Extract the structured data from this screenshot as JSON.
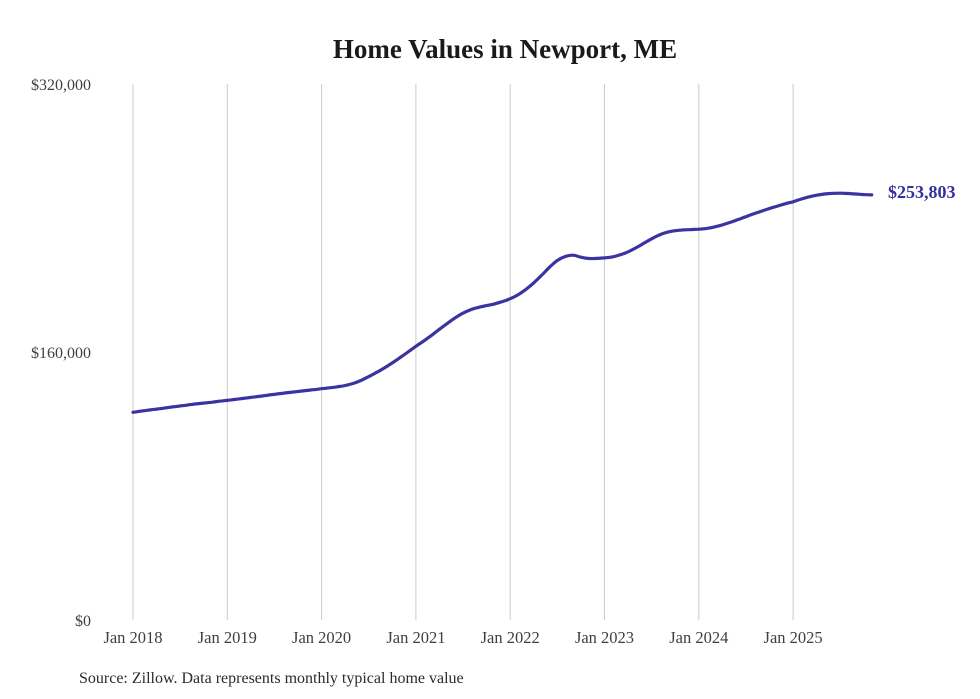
{
  "title": "Home Values in Newport, ME",
  "source_note": "Source: Zillow. Data represents monthly typical home value",
  "end_label": "$253,803",
  "colors": {
    "line": "#3a33a0",
    "end_label": "#35309b",
    "grid": "#cccccc",
    "axis_text": "#3f3f3f",
    "title_text": "#1a1a1a",
    "source_text": "#2b2b2b",
    "background": "#ffffff"
  },
  "chart_data": {
    "type": "line",
    "title": "Home Values in Newport, ME",
    "xlabel": "",
    "ylabel": "",
    "ylim": [
      0,
      320000
    ],
    "grid": "vertical-only",
    "legend": "none",
    "x_tick_labels": [
      "Jan 2018",
      "Jan 2019",
      "Jan 2020",
      "Jan 2021",
      "Jan 2022",
      "Jan 2023",
      "Jan 2024",
      "Jan 2025"
    ],
    "y_ticks": [
      {
        "value": 0,
        "label": "$0"
      },
      {
        "value": 160000,
        "label": "$160,000"
      },
      {
        "value": 320000,
        "label": "$320,000"
      }
    ],
    "end_annotation": {
      "text": "$253,803",
      "value": 253803
    },
    "series": [
      {
        "name": "Monthly typical home value (USD)",
        "color": "#3a33a0",
        "x": [
          "2018-01",
          "2018-02",
          "2018-03",
          "2018-04",
          "2018-05",
          "2018-06",
          "2018-07",
          "2018-08",
          "2018-09",
          "2018-10",
          "2018-11",
          "2018-12",
          "2019-01",
          "2019-02",
          "2019-03",
          "2019-04",
          "2019-05",
          "2019-06",
          "2019-07",
          "2019-08",
          "2019-09",
          "2019-10",
          "2019-11",
          "2019-12",
          "2020-01",
          "2020-02",
          "2020-03",
          "2020-04",
          "2020-05",
          "2020-06",
          "2020-07",
          "2020-08",
          "2020-09",
          "2020-10",
          "2020-11",
          "2020-12",
          "2021-01",
          "2021-02",
          "2021-03",
          "2021-04",
          "2021-05",
          "2021-06",
          "2021-07",
          "2021-08",
          "2021-09",
          "2021-10",
          "2021-11",
          "2021-12",
          "2022-01",
          "2022-02",
          "2022-03",
          "2022-04",
          "2022-05",
          "2022-06",
          "2022-07",
          "2022-08",
          "2022-09",
          "2022-10",
          "2022-11",
          "2022-12",
          "2023-01",
          "2023-02",
          "2023-03",
          "2023-04",
          "2023-05",
          "2023-06",
          "2023-07",
          "2023-08",
          "2023-09",
          "2023-10",
          "2023-11",
          "2023-12",
          "2024-01",
          "2024-02",
          "2024-03",
          "2024-04",
          "2024-05",
          "2024-06",
          "2024-07",
          "2024-08",
          "2024-09",
          "2024-10",
          "2024-11",
          "2024-12",
          "2025-01",
          "2025-02",
          "2025-03",
          "2025-04",
          "2025-05",
          "2025-06",
          "2025-07",
          "2025-08",
          "2025-09",
          "2025-10",
          "2025-11"
        ],
        "values": [
          124000,
          124700,
          125300,
          125900,
          126500,
          127200,
          127800,
          128400,
          129000,
          129500,
          130000,
          130600,
          131100,
          131700,
          132300,
          132900,
          133500,
          134100,
          134700,
          135300,
          135900,
          136400,
          137000,
          137500,
          138100,
          138600,
          139200,
          140000,
          141200,
          143000,
          145300,
          147800,
          150500,
          153500,
          156700,
          160000,
          163400,
          166600,
          170000,
          173600,
          177100,
          180400,
          183200,
          185300,
          186700,
          187700,
          188700,
          190100,
          191800,
          194200,
          197400,
          201300,
          205800,
          210600,
          214700,
          217000,
          217800,
          216600,
          215800,
          215900,
          216200,
          216800,
          218000,
          219800,
          222200,
          224900,
          227600,
          229900,
          231500,
          232400,
          232900,
          233100,
          233300,
          233800,
          234700,
          235900,
          237400,
          239100,
          240800,
          242500,
          244100,
          245700,
          247100,
          248500,
          249700,
          251300,
          252600,
          253600,
          254300,
          254700,
          254800,
          254600,
          254300,
          254000,
          253803
        ]
      }
    ]
  }
}
